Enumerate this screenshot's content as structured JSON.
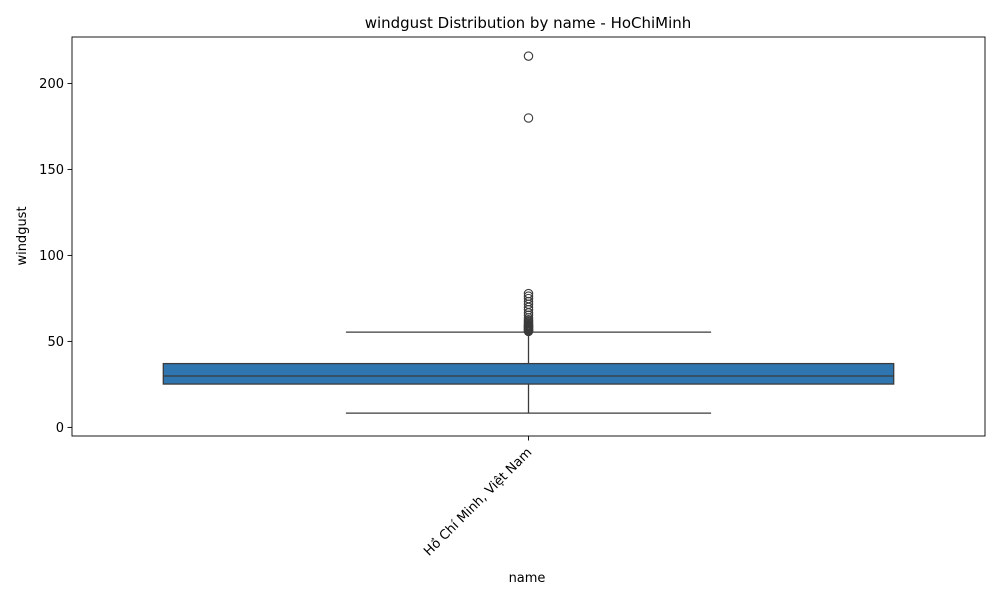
{
  "chart_data": {
    "type": "box",
    "title": "windgust Distribution by name - HoChiMinh",
    "xlabel": "name",
    "ylabel": "windgust",
    "categories": [
      "Hồ Chí Minh, Việt Nam"
    ],
    "ylim": [
      -5,
      227
    ],
    "yticks": [
      0,
      50,
      100,
      150,
      200
    ],
    "grid": false,
    "legend": "none",
    "colors": {
      "box_fill": "#2f76b1",
      "line": "#3b3b3b"
    },
    "boxes": [
      {
        "name": "Hồ Chí Minh, Việt Nam",
        "whisker_low": 8.3,
        "q1": 25.2,
        "median": 29.9,
        "q3": 37.1,
        "whisker_high": 55.4,
        "outliers": [
          55.8,
          56.2,
          56.5,
          56.9,
          57.2,
          57.6,
          58.0,
          58.3,
          58.7,
          59.0,
          59.4,
          59.8,
          60.5,
          61.2,
          61.9,
          62.6,
          63.7,
          65.2,
          66.6,
          68.4,
          69.8,
          71.6,
          73.1,
          74.9,
          76.3,
          77.8,
          179.9,
          215.9
        ]
      }
    ]
  }
}
